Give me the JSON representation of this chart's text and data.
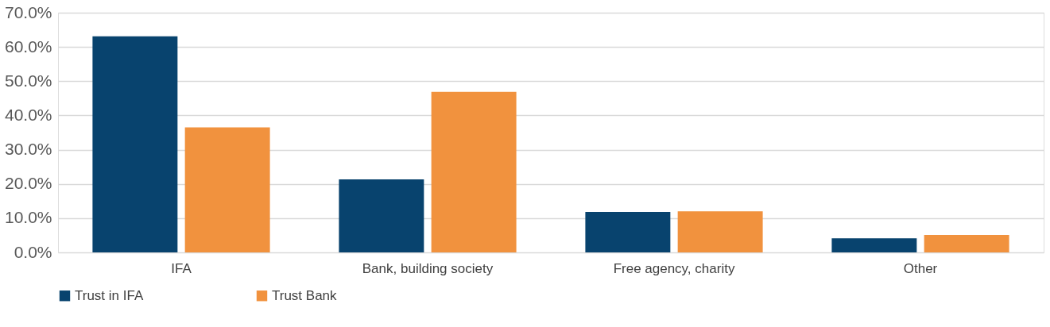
{
  "chart_data": {
    "type": "bar",
    "categories": [
      "IFA",
      "Bank, building society",
      "Free agency, charity",
      "Other"
    ],
    "series": [
      {
        "name": "Trust in IFA",
        "color": "#08436e",
        "values": [
          63.1,
          21.3,
          11.8,
          4.1
        ]
      },
      {
        "name": "Trust Bank",
        "color": "#f1923e",
        "values": [
          36.5,
          46.9,
          12.0,
          5.1
        ]
      }
    ],
    "ylim": [
      0,
      70
    ],
    "yticks": [
      {
        "value": 0,
        "label": "0.0%"
      },
      {
        "value": 10,
        "label": "10.0%"
      },
      {
        "value": 20,
        "label": "20.0%"
      },
      {
        "value": 30,
        "label": "30.0%"
      },
      {
        "value": 40,
        "label": "40.0%"
      },
      {
        "value": 50,
        "label": "50.0%"
      },
      {
        "value": 60,
        "label": "60.0%"
      },
      {
        "value": 70,
        "label": "70.0%"
      }
    ],
    "grid": "y",
    "legend": "bottom"
  }
}
